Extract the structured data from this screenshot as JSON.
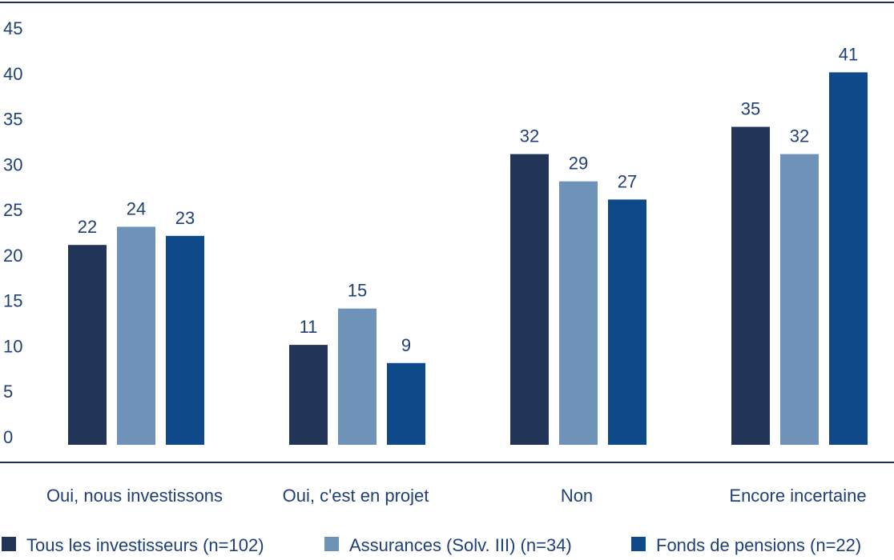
{
  "chart_data": {
    "type": "bar",
    "categories": [
      "Oui, nous investissons",
      "Oui, c'est en projet",
      "Non",
      "Encore incertaine"
    ],
    "series": [
      {
        "name": "Tous les investisseurs (n=102)",
        "values": [
          22,
          11,
          32,
          35
        ],
        "color": "#233459"
      },
      {
        "name": "Assurances (Solv. III) (n=34)",
        "values": [
          24,
          15,
          29,
          32
        ],
        "color": "#6f93b8"
      },
      {
        "name": "Fonds de pensions (n=22)",
        "values": [
          23,
          9,
          27,
          41
        ],
        "color": "#0e4a8a"
      }
    ],
    "yticks": [
      0,
      5,
      10,
      15,
      20,
      25,
      30,
      35,
      40,
      45
    ],
    "ylim": [
      0,
      45
    ],
    "value_labels": true,
    "legend_position": "bottom",
    "grid": false,
    "text_color": "#1e3f7a",
    "axis_line_color": "#1f2f55"
  }
}
